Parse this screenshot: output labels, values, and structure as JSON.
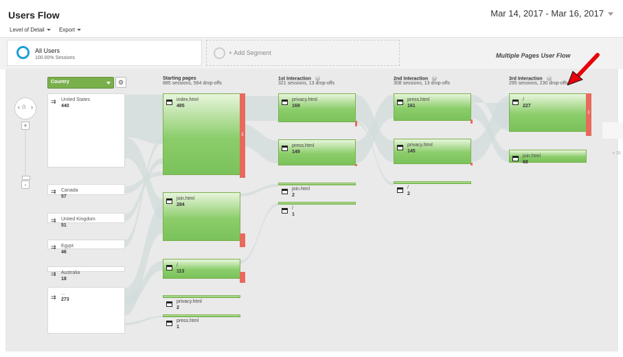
{
  "header": {
    "title": "Users Flow",
    "date_range": "Mar 14, 2017 - Mar 16, 2017"
  },
  "toolbar": {
    "level_of_detail": "Level of Detail",
    "export": "Export"
  },
  "segments": {
    "active_name": "All Users",
    "active_sub": "100.00% Sessions",
    "add_label": "+ Add Segment"
  },
  "annotation": "Multiple Pages User Flow",
  "controls": {
    "dimension": "Country",
    "zoom_in": "+",
    "zoom_out": "-"
  },
  "columns": [
    {
      "title": "Starting pages",
      "sub": "885 sessions, 564 drop-offs"
    },
    {
      "title": "1st Interaction",
      "sub": "321 sessions, 13 drop-offs"
    },
    {
      "title": "2nd Interaction",
      "sub": "308 sessions, 13 drop-offs"
    },
    {
      "title": "3rd Interaction",
      "sub": "295 sessions, 230 drop-offs"
    }
  ],
  "countries": [
    {
      "name": "United States",
      "value": "440"
    },
    {
      "name": "Canada",
      "value": "57"
    },
    {
      "name": "United Kingdom",
      "value": "51"
    },
    {
      "name": "Egypt",
      "value": "46"
    },
    {
      "name": "Australia",
      "value": "18"
    },
    {
      "name": "...",
      "value": "273"
    }
  ],
  "starting_pages": [
    {
      "name": "index.html",
      "value": "485"
    },
    {
      "name": "join.html",
      "value": "284"
    },
    {
      "name": "/",
      "value": "113"
    },
    {
      "name": "privacy.html",
      "value": "2"
    },
    {
      "name": "press.html",
      "value": "1"
    }
  ],
  "interaction1": [
    {
      "name": "privacy.html",
      "value": "169"
    },
    {
      "name": "press.html",
      "value": "149"
    },
    {
      "name": "join.html",
      "value": "2"
    },
    {
      "name": "/",
      "value": "1"
    }
  ],
  "interaction2": [
    {
      "name": "press.html",
      "value": "161"
    },
    {
      "name": "privacy.html",
      "value": "145"
    },
    {
      "name": "/",
      "value": "2"
    }
  ],
  "interaction3": [
    {
      "name": "/",
      "value": "227"
    },
    {
      "name": "join.html",
      "value": "68"
    }
  ],
  "ghost_label": "+ St",
  "colors": {
    "accent": "#1a9fd8",
    "node_green": "#7bc25b",
    "dropoff_red": "#e86a5c",
    "flow_gray": "#d3dcdc",
    "arrow_red": "#e8000b"
  },
  "icons": {
    "dimension_gear": "⚙",
    "home": "⌂",
    "nav_left": "‹",
    "nav_right": "›",
    "remove": "×",
    "country_arrow": "⇉",
    "drop_arrow": "⇩"
  }
}
